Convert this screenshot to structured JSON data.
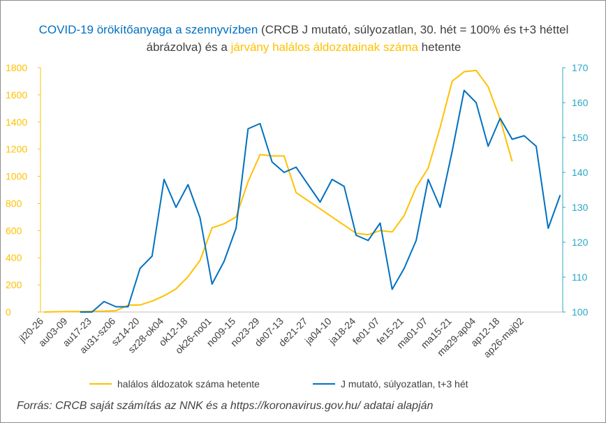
{
  "chart_data": {
    "type": "line",
    "title_parts": [
      {
        "text": "COVID-19 örökítőanyaga a szennyvízben",
        "color": "blue"
      },
      {
        "text": " (CRCB J mutató, súlyozatlan, 30. hét = 100% és t+3 héttel ábrázolva) és a ",
        "color": "normal"
      },
      {
        "text": "járvány halálos áldozatainak száma",
        "color": "yellow"
      },
      {
        "text": " hetente",
        "color": "normal"
      }
    ],
    "x_tick_labels": [
      "jl20-26",
      "au03-09",
      "au17-23",
      "au31-sz06",
      "sz14-20",
      "sz28-ok04",
      "ok12-18",
      "ok26-no01",
      "no09-15",
      "no23-29",
      "de07-13",
      "de21-27",
      "ja04-10",
      "ja18-24",
      "fe01-07",
      "fe15-21",
      "ma01-07",
      "ma15-21",
      "ma29-ap04",
      "ap12-18",
      "ap26-maj02"
    ],
    "left_axis": {
      "min": 0,
      "max": 1800,
      "step": 200,
      "ticks": [
        "0",
        "200",
        "400",
        "600",
        "800",
        "1000",
        "1200",
        "1400",
        "1600",
        "1800"
      ]
    },
    "right_axis": {
      "min": 100,
      "max": 170,
      "step": 10,
      "ticks": [
        "100",
        "110",
        "120",
        "130",
        "140",
        "150",
        "160",
        "170"
      ]
    },
    "series": [
      {
        "name": "halálos áldozatok száma hetente",
        "axis": "left",
        "color": "#ffc000",
        "values": [
          0,
          2,
          3,
          3,
          5,
          6,
          10,
          50,
          52,
          80,
          120,
          170,
          260,
          380,
          620,
          650,
          700,
          960,
          1160,
          1150,
          1150,
          880,
          820,
          760,
          700,
          640,
          580,
          570,
          600,
          590,
          710,
          920,
          1060,
          1360,
          1700,
          1770,
          1780,
          1660,
          1420,
          1110
        ]
      },
      {
        "name": "J mutató, súlyozatlan, t+3 hét",
        "axis": "right",
        "color": "#0070c0",
        "values": [
          null,
          null,
          null,
          100,
          100,
          103,
          101.5,
          101.5,
          112.5,
          116,
          138,
          130,
          136.5,
          127,
          108,
          114.5,
          124,
          152.5,
          154,
          143,
          140,
          141.5,
          136.5,
          131.5,
          138,
          136,
          122,
          120.5,
          125.5,
          106.5,
          112.5,
          120.5,
          138,
          130,
          146,
          163.5,
          160,
          147.5,
          155.5,
          149.5,
          150.5,
          147.5,
          124,
          133.5
        ]
      }
    ],
    "legend_position": "bottom",
    "grid": false
  },
  "source_note": "Forrás: CRCB saját számítás az NNK és a https://koronavirus.gov.hu/ adatai alapján"
}
